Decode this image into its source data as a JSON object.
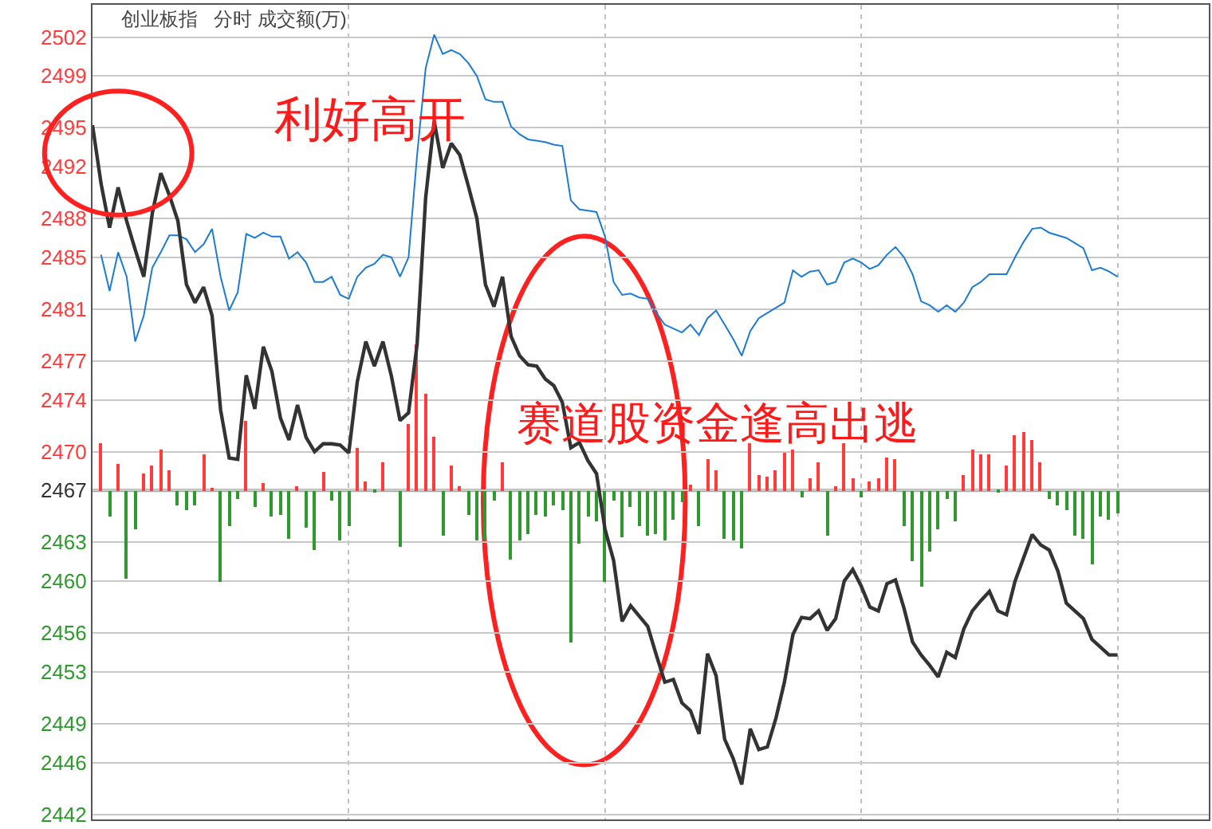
{
  "chart_data": {
    "type": "line",
    "title": "创业板指   分时 成交额(万)",
    "annotations": [
      "利好高开",
      "赛道股资金逢高出逃"
    ],
    "categories": [
      null,
      null,
      null,
      null,
      null,
      null,
      null,
      null,
      null,
      null,
      null,
      null,
      null,
      null,
      null,
      null,
      null,
      null,
      null,
      null,
      null,
      null,
      null,
      null,
      null,
      null,
      null,
      null,
      null,
      null,
      null,
      null,
      null,
      null,
      null,
      null,
      null,
      null,
      null,
      null,
      null,
      null,
      null,
      null,
      null,
      null,
      null,
      null,
      null,
      null,
      null,
      null,
      null,
      null,
      null,
      null,
      null,
      null,
      null,
      null,
      null,
      null,
      null,
      null,
      null,
      null,
      null,
      null,
      null,
      null,
      null,
      null,
      null,
      null,
      null,
      null,
      null,
      null,
      null,
      null,
      null,
      null,
      null,
      null,
      null,
      null,
      null,
      null,
      null,
      null,
      null,
      null,
      null,
      null,
      null,
      null,
      null,
      null,
      null,
      null,
      null,
      null,
      null,
      null,
      null,
      null,
      null,
      null,
      null,
      null,
      null,
      null,
      null,
      null,
      null,
      null,
      null,
      null,
      null,
      null,
      null
    ],
    "series": [
      {
        "type": "bar",
        "base": [
          null,
          2467,
          2467,
          2467,
          2467,
          2467,
          2467,
          2467,
          2467,
          2467,
          2467,
          2467,
          2467,
          2467,
          2467,
          2467,
          2467,
          2467,
          2467,
          2467,
          2467,
          2467,
          2467,
          2467,
          2467,
          2467,
          2467,
          2467,
          2467,
          2467,
          2467,
          2467,
          2467,
          2467,
          2467,
          null,
          2467,
          2467,
          2467,
          2467,
          2467,
          2467,
          2467,
          2467,
          2467,
          2467,
          2467,
          2467,
          2467,
          2467,
          2467,
          2467,
          2467,
          2467,
          2467,
          2467,
          2467,
          2467,
          2467,
          2467,
          2467,
          2467,
          2467,
          2467,
          2467,
          2467,
          2467,
          2467,
          2467,
          2467,
          2467,
          2467,
          2467,
          2467,
          2467,
          2467,
          2467,
          2467,
          2467,
          2467,
          2467,
          2467,
          2467,
          2467,
          2467,
          2467,
          2467,
          2467,
          2467,
          2467,
          2467,
          2467,
          2467,
          2467,
          2467,
          2467,
          2467,
          2467,
          2467,
          2467,
          2467,
          2467,
          2467,
          2467,
          2467,
          2467,
          2467,
          2467,
          2467,
          2467,
          2467,
          2467,
          2467,
          2467,
          2467,
          2467,
          2467,
          2467,
          2467,
          2467,
          2467
        ],
        "values": [
          0,
          3.7,
          -2.0,
          2.1,
          -6.8,
          -3.0,
          1.3,
          1.9,
          3.1,
          1.6,
          -1.1,
          -1.5,
          -1.1,
          2.8,
          0.2,
          -7.1,
          -2.8,
          -0.7,
          5.4,
          -1.3,
          0.6,
          -2.0,
          -1.9,
          -3.7,
          0.3,
          -2.9,
          -4.6,
          1.4,
          -0.8,
          -3.8,
          -2.7,
          3.3,
          0.7,
          -0.2,
          2.2,
          0,
          -4.4,
          5.1,
          11.3,
          7.5,
          4.1,
          -3.5,
          1.9,
          0.3,
          -1.9,
          -3.9,
          -3.8,
          -0.8,
          2.2,
          -5.3,
          -3.8,
          -3.4,
          -1.9,
          -2.0,
          -1.1,
          -1.5,
          -11.7,
          -4.1,
          -2.0,
          -2.4,
          -7.1,
          -0.8,
          -3.6,
          -1.3,
          -2.7,
          -3.5,
          -3.4,
          -3.8,
          -2.2,
          -0.9,
          0.5,
          -2.7,
          2.4,
          1.6,
          -3.7,
          -3.8,
          -4.5,
          3.7,
          1.2,
          1.1,
          1.6,
          2.9,
          3.1,
          -0.5,
          0.9,
          2.2,
          -3.5,
          0.3,
          3.7,
          1.0,
          -0.5,
          0.7,
          1.0,
          2.6,
          2.4,
          -2.8,
          -5.4,
          -7.4,
          -4.7,
          -3.0,
          -0.7,
          -2.4,
          1.2,
          3.1,
          2.8,
          2.8,
          -0.2,
          1.9,
          4.3,
          4.5,
          3.9,
          2.2,
          -0.7,
          -1.1,
          -1.5,
          -3.5,
          -3.7,
          -5.7,
          -2.0,
          -2.2,
          -1.8
        ],
        "colors": [
          "#ff3b3b",
          "#ff3b3b",
          "#2e9a2e",
          "#ff3b3b",
          "#2e9a2e",
          "#2e9a2e",
          "#ff3b3b",
          "#ff3b3b",
          "#ff3b3b",
          "#ff3b3b",
          "#2e9a2e",
          "#2e9a2e",
          "#2e9a2e",
          "#ff3b3b",
          "#ff3b3b",
          "#2e9a2e",
          "#2e9a2e",
          "#2e9a2e",
          "#ff3b3b",
          "#2e9a2e",
          "#ff3b3b",
          "#2e9a2e",
          "#2e9a2e",
          "#2e9a2e",
          "#ff3b3b",
          "#2e9a2e",
          "#2e9a2e",
          "#ff3b3b",
          "#2e9a2e",
          "#2e9a2e",
          "#2e9a2e",
          "#ff3b3b",
          "#ff3b3b",
          "#2e9a2e",
          "#ff3b3b",
          "#ff3b3b",
          "#2e9a2e",
          "#ff3b3b",
          "#ff3b3b",
          "#ff3b3b",
          "#ff3b3b",
          "#2e9a2e",
          "#ff3b3b",
          "#ff3b3b",
          "#2e9a2e",
          "#2e9a2e",
          "#2e9a2e",
          "#2e9a2e",
          "#ff3b3b",
          "#2e9a2e",
          "#2e9a2e",
          "#2e9a2e",
          "#2e9a2e",
          "#2e9a2e",
          "#2e9a2e",
          "#2e9a2e",
          "#2e9a2e",
          "#2e9a2e",
          "#2e9a2e",
          "#2e9a2e",
          "#2e9a2e",
          "#2e9a2e",
          "#2e9a2e",
          "#2e9a2e",
          "#2e9a2e",
          "#2e9a2e",
          "#2e9a2e",
          "#2e9a2e",
          "#2e9a2e",
          "#2e9a2e",
          "#ff3b3b",
          "#2e9a2e",
          "#ff3b3b",
          "#ff3b3b",
          "#2e9a2e",
          "#2e9a2e",
          "#2e9a2e",
          "#ff3b3b",
          "#ff3b3b",
          "#ff3b3b",
          "#ff3b3b",
          "#ff3b3b",
          "#ff3b3b",
          "#2e9a2e",
          "#ff3b3b",
          "#ff3b3b",
          "#2e9a2e",
          "#ff3b3b",
          "#ff3b3b",
          "#ff3b3b",
          "#2e9a2e",
          "#ff3b3b",
          "#ff3b3b",
          "#ff3b3b",
          "#ff3b3b",
          "#2e9a2e",
          "#2e9a2e",
          "#2e9a2e",
          "#2e9a2e",
          "#2e9a2e",
          "#2e9a2e",
          "#2e9a2e",
          "#ff3b3b",
          "#ff3b3b",
          "#ff3b3b",
          "#ff3b3b",
          "#2e9a2e",
          "#ff3b3b",
          "#ff3b3b",
          "#ff3b3b",
          "#ff3b3b",
          "#ff3b3b",
          "#2e9a2e",
          "#2e9a2e",
          "#2e9a2e",
          "#2e9a2e",
          "#2e9a2e",
          "#2e9a2e",
          "#2e9a2e",
          "#2e9a2e",
          "#2e9a2e"
        ]
      },
      {
        "color": "#1c7cd5",
        "values": [
          null,
          2485.2,
          2482.4,
          2485.4,
          2483.5,
          2478.5,
          2480.5,
          2484.2,
          2485.4,
          2486.7,
          2486.7,
          2486.4,
          2485.4,
          2486.0,
          2487.2,
          2483.5,
          2480.9,
          2482.3,
          2486.8,
          2486.5,
          2486.9,
          2486.6,
          2486.6,
          2484.9,
          2485.4,
          2484.6,
          2483.1,
          2483.1,
          2483.5,
          2482.1,
          2481.8,
          2483.5,
          2484.2,
          2484.5,
          2485.2,
          2485.0,
          2483.5,
          2485.0,
          2492.9,
          2499.6,
          2502.2,
          2500.7,
          2501.0,
          2500.7,
          2500.0,
          2499.0,
          2497.2,
          2497.0,
          2497.0,
          2495.1,
          2494.5,
          2494.1,
          2494.0,
          2493.9,
          2493.7,
          2493.6,
          2489.4,
          2488.7,
          2488.6,
          2488.5,
          2486.6,
          2483.1,
          2482.1,
          2482.2,
          2481.9,
          2481.8,
          2480.7,
          2479.8,
          2479.5,
          2479.2,
          2479.8,
          2479.0,
          2480.3,
          2480.9,
          2479.8,
          2478.7,
          2477.4,
          2479.3,
          2480.3,
          2480.7,
          2481.1,
          2481.5,
          2484.0,
          2483.5,
          2483.9,
          2484.0,
          2482.9,
          2483.1,
          2484.6,
          2484.9,
          2484.6,
          2484.1,
          2484.4,
          2485.2,
          2485.8,
          2485.0,
          2483.7,
          2481.6,
          2481.3,
          2480.8,
          2481.3,
          2480.8,
          2481.5,
          2482.7,
          2483.1,
          2483.7,
          2483.7,
          2483.7,
          2485.0,
          2486.2,
          2487.2,
          2487.3,
          2486.9,
          2486.7,
          2486.5,
          2486.1,
          2485.7,
          2484.0,
          2484.2,
          2483.9,
          2483.5
        ]
      },
      {
        "color": "#333333",
        "values": [
          2495.2,
          2490.7,
          2487.3,
          2490.4,
          2487.8,
          2485.6,
          2483.5,
          2488.4,
          2491.5,
          2489.8,
          2487.8,
          2482.9,
          2481.5,
          2482.7,
          2480.5,
          2473.2,
          2469.5,
          2469.4,
          2475.9,
          2473.3,
          2478.1,
          2476.2,
          2472.6,
          2470.9,
          2473.6,
          2471.1,
          2470.0,
          2470.6,
          2470.6,
          2470.5,
          2469.9,
          2475.4,
          2478.5,
          2476.6,
          2478.5,
          2475.8,
          2472.4,
          2473.0,
          2478.3,
          2489.6,
          2495.5,
          2491.9,
          2493.8,
          2492.9,
          2490.5,
          2488.0,
          2482.9,
          2481.2,
          2483.5,
          2478.9,
          2477.4,
          2476.7,
          2476.6,
          2475.6,
          2475.1,
          2473.8,
          2470.3,
          2470.7,
          2469.3,
          2468.3,
          2464.0,
          2461.6,
          2456.9,
          2458.1,
          2457.3,
          2456.5,
          2454.3,
          2452.2,
          2452.4,
          2450.6,
          2450.0,
          2448.2,
          2454.4,
          2452.7,
          2447.8,
          2446.3,
          2444.3,
          2448.6,
          2447.0,
          2447.2,
          2449.4,
          2452.2,
          2455.9,
          2457.2,
          2457.1,
          2457.7,
          2456.2,
          2457.1,
          2460.0,
          2460.9,
          2459.6,
          2458.0,
          2457.7,
          2459.8,
          2460.1,
          2457.9,
          2455.3,
          2454.3,
          2453.5,
          2452.6,
          2454.5,
          2454.1,
          2456.3,
          2457.7,
          2458.5,
          2459.2,
          2457.7,
          2457.4,
          2460.0,
          2461.8,
          2463.6,
          2462.8,
          2462.4,
          2460.8,
          2458.3,
          2457.7,
          2457.1,
          2455.5,
          2454.9,
          2454.3,
          2454.3
        ]
      }
    ],
    "ref_lines": [
      {
        "axis": "y",
        "value": 2467,
        "color": "#a8a8a8"
      }
    ],
    "ylim": [
      2441.6,
      2504.5
    ],
    "yticks": [
      {
        "value": 2442,
        "label": "2442"
      },
      {
        "value": 2446,
        "label": "2446"
      },
      {
        "value": 2449,
        "label": "2449"
      },
      {
        "value": 2453,
        "label": "2453"
      },
      {
        "value": 2456,
        "label": "2456"
      },
      {
        "value": 2460,
        "label": "2460"
      },
      {
        "value": 2463,
        "label": "2463"
      },
      {
        "value": 2467,
        "label": "2467"
      },
      {
        "value": 2470,
        "label": "2470"
      },
      {
        "value": 2474,
        "label": "2474"
      },
      {
        "value": 2477,
        "label": "2477"
      },
      {
        "value": 2481,
        "label": "2481"
      },
      {
        "value": 2485,
        "label": "2485"
      },
      {
        "value": 2488,
        "label": "2488"
      },
      {
        "value": 2492,
        "label": "2492"
      },
      {
        "value": 2495,
        "label": "2495"
      },
      {
        "value": 2499,
        "label": "2499"
      },
      {
        "value": 2502,
        "label": "2502"
      }
    ],
    "tick_labels": "y",
    "grid": true,
    "marker": "none",
    "line_style": "solid"
  }
}
